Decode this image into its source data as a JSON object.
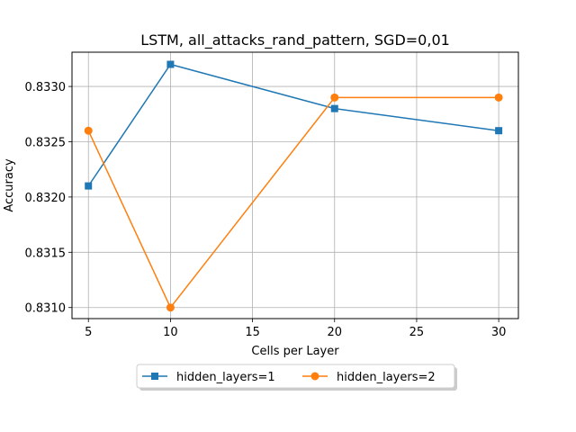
{
  "chart_data": {
    "type": "line",
    "title": "LSTM, all_attacks_rand_pattern, SGD=0,01",
    "xlabel": "Cells per Layer",
    "ylabel": "Accuracy",
    "x": [
      5,
      10,
      20,
      30
    ],
    "xlim": [
      4,
      31.2
    ],
    "ylim": [
      0.8309,
      0.83331
    ],
    "xticks": [
      5,
      10,
      15,
      20,
      25,
      30
    ],
    "yticks": [
      0.831,
      0.8315,
      0.832,
      0.8325,
      0.833
    ],
    "ytick_labels": [
      "0.8310",
      "0.8315",
      "0.8320",
      "0.8325",
      "0.8330"
    ],
    "grid": true,
    "legend_position": "bottom-center",
    "series": [
      {
        "name": "hidden_layers=1",
        "values": [
          0.8321,
          0.8332,
          0.8328,
          0.8326
        ],
        "color": "#1f77b4",
        "marker": "square"
      },
      {
        "name": "hidden_layers=2",
        "values": [
          0.8326,
          0.831,
          0.8329,
          0.8329
        ],
        "color": "#ff7f0e",
        "marker": "circle"
      }
    ]
  }
}
